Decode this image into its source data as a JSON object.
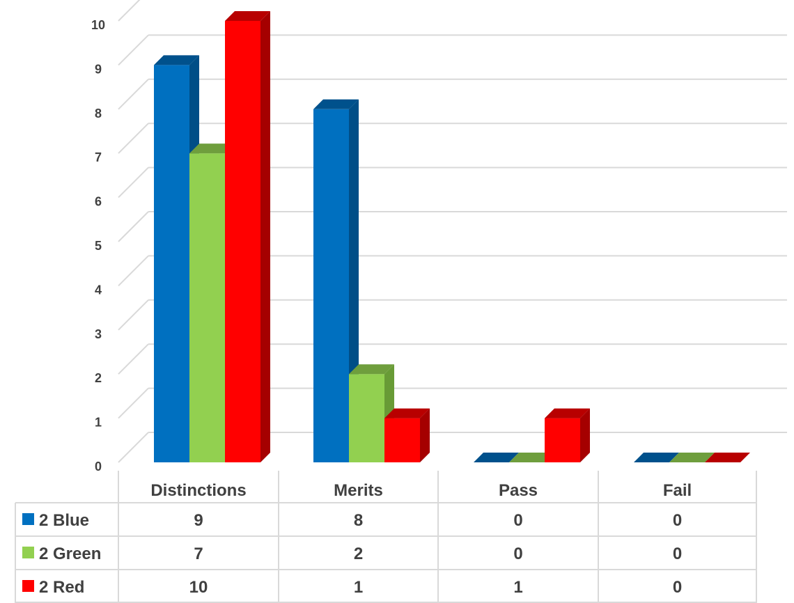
{
  "chart_data": {
    "type": "bar",
    "categories": [
      "Distinctions",
      "Merits",
      "Pass",
      "Fail"
    ],
    "series": [
      {
        "name": "2 Blue",
        "values": [
          9,
          8,
          0,
          0
        ],
        "color": "#0070C0",
        "side": "#004E87",
        "top": "#00518C"
      },
      {
        "name": "2 Green",
        "values": [
          7,
          2,
          0,
          0
        ],
        "color": "#92D050",
        "side": "#689B36",
        "top": "#6F9E3D"
      },
      {
        "name": "2 Red",
        "values": [
          10,
          1,
          1,
          0
        ],
        "color": "#FF0000",
        "side": "#A50000",
        "top": "#B80000"
      }
    ],
    "y_ticks": [
      0,
      1,
      2,
      3,
      4,
      5,
      6,
      7,
      8,
      9,
      10
    ],
    "ylim": [
      0,
      10
    ],
    "grid": true,
    "style": "3d-clustered-column",
    "legend_placement": "data-table"
  }
}
